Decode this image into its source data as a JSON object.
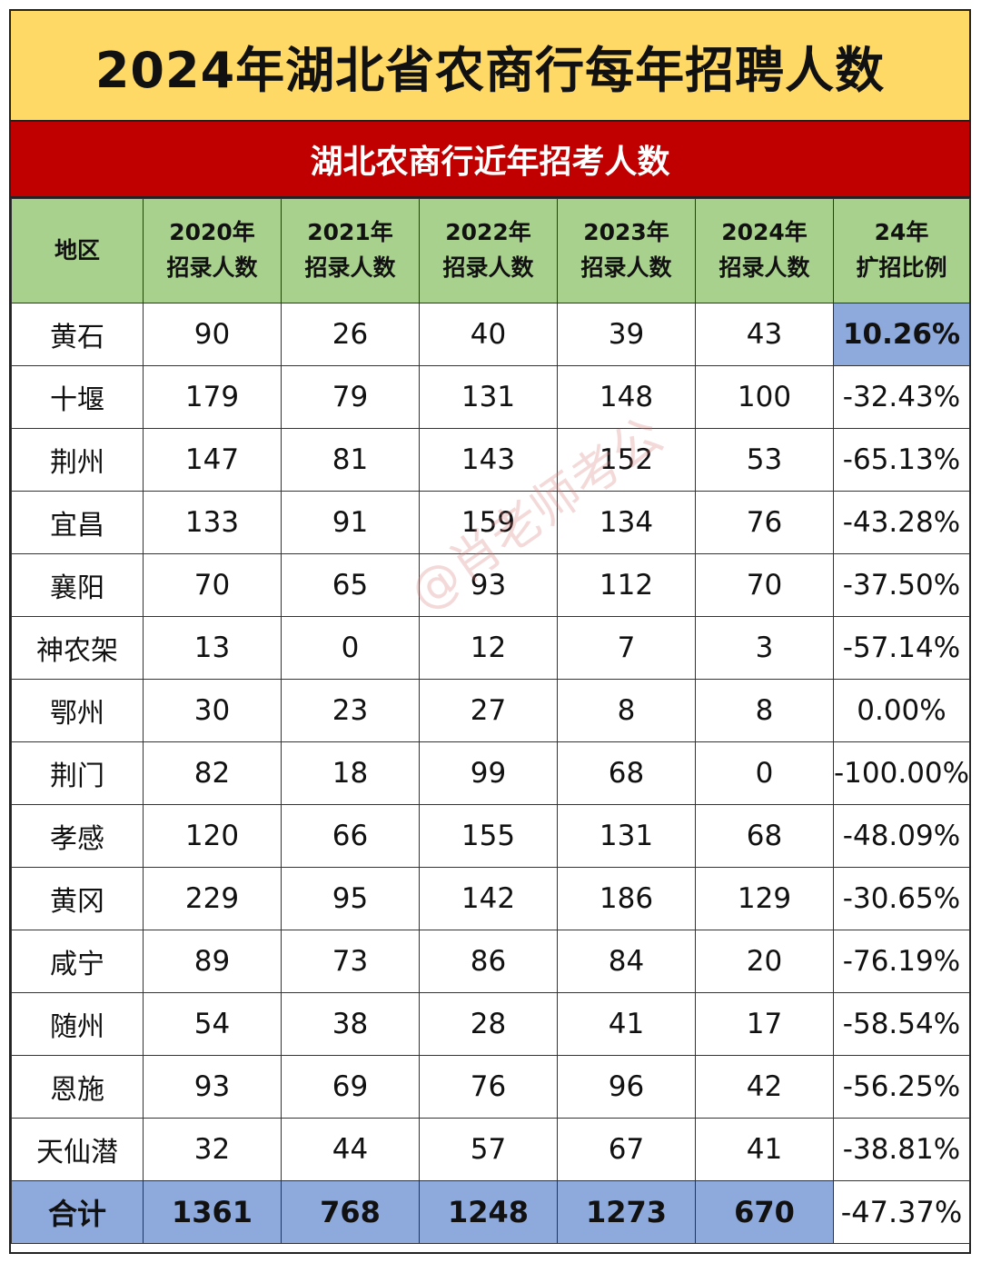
{
  "title": "2024年湖北省农商行每年招聘人数",
  "subtitle": "湖北农商行近年招考人数",
  "headers": [
    [
      "地区"
    ],
    [
      "2020年",
      "招录人数"
    ],
    [
      "2021年",
      "招录人数"
    ],
    [
      "2022年",
      "招录人数"
    ],
    [
      "2023年",
      "招录人数"
    ],
    [
      "2024年",
      "招录人数"
    ],
    [
      "24年",
      "扩招比例"
    ]
  ],
  "rows": [
    [
      "黄石",
      "90",
      "26",
      "40",
      "39",
      "43",
      "10.26%"
    ],
    [
      "十堰",
      "179",
      "79",
      "131",
      "148",
      "100",
      "-32.43%"
    ],
    [
      "荆州",
      "147",
      "81",
      "143",
      "152",
      "53",
      "-65.13%"
    ],
    [
      "宜昌",
      "133",
      "91",
      "159",
      "134",
      "76",
      "-43.28%"
    ],
    [
      "襄阳",
      "70",
      "65",
      "93",
      "112",
      "70",
      "-37.50%"
    ],
    [
      "神农架",
      "13",
      "0",
      "12",
      "7",
      "3",
      "-57.14%"
    ],
    [
      "鄂州",
      "30",
      "23",
      "27",
      "8",
      "8",
      "0.00%"
    ],
    [
      "荆门",
      "82",
      "18",
      "99",
      "68",
      "0",
      "-100.00%"
    ],
    [
      "孝感",
      "120",
      "66",
      "155",
      "131",
      "68",
      "-48.09%"
    ],
    [
      "黄冈",
      "229",
      "95",
      "142",
      "186",
      "129",
      "-30.65%"
    ],
    [
      "咸宁",
      "89",
      "73",
      "86",
      "84",
      "20",
      "-76.19%"
    ],
    [
      "随州",
      "54",
      "38",
      "28",
      "41",
      "17",
      "-58.54%"
    ],
    [
      "恩施",
      "93",
      "69",
      "76",
      "96",
      "42",
      "-56.25%"
    ],
    [
      "天仙潜",
      "32",
      "44",
      "57",
      "67",
      "41",
      "-38.81%"
    ]
  ],
  "total": [
    "合计",
    "1361",
    "768",
    "1248",
    "1273",
    "670",
    "-47.37%"
  ],
  "watermark": "@肖老师考公",
  "colors": {
    "title_bg": "#ffd966",
    "subtitle_bg": "#c00000",
    "header_bg": "#a9d18e",
    "highlight_bg": "#8ea9db"
  }
}
